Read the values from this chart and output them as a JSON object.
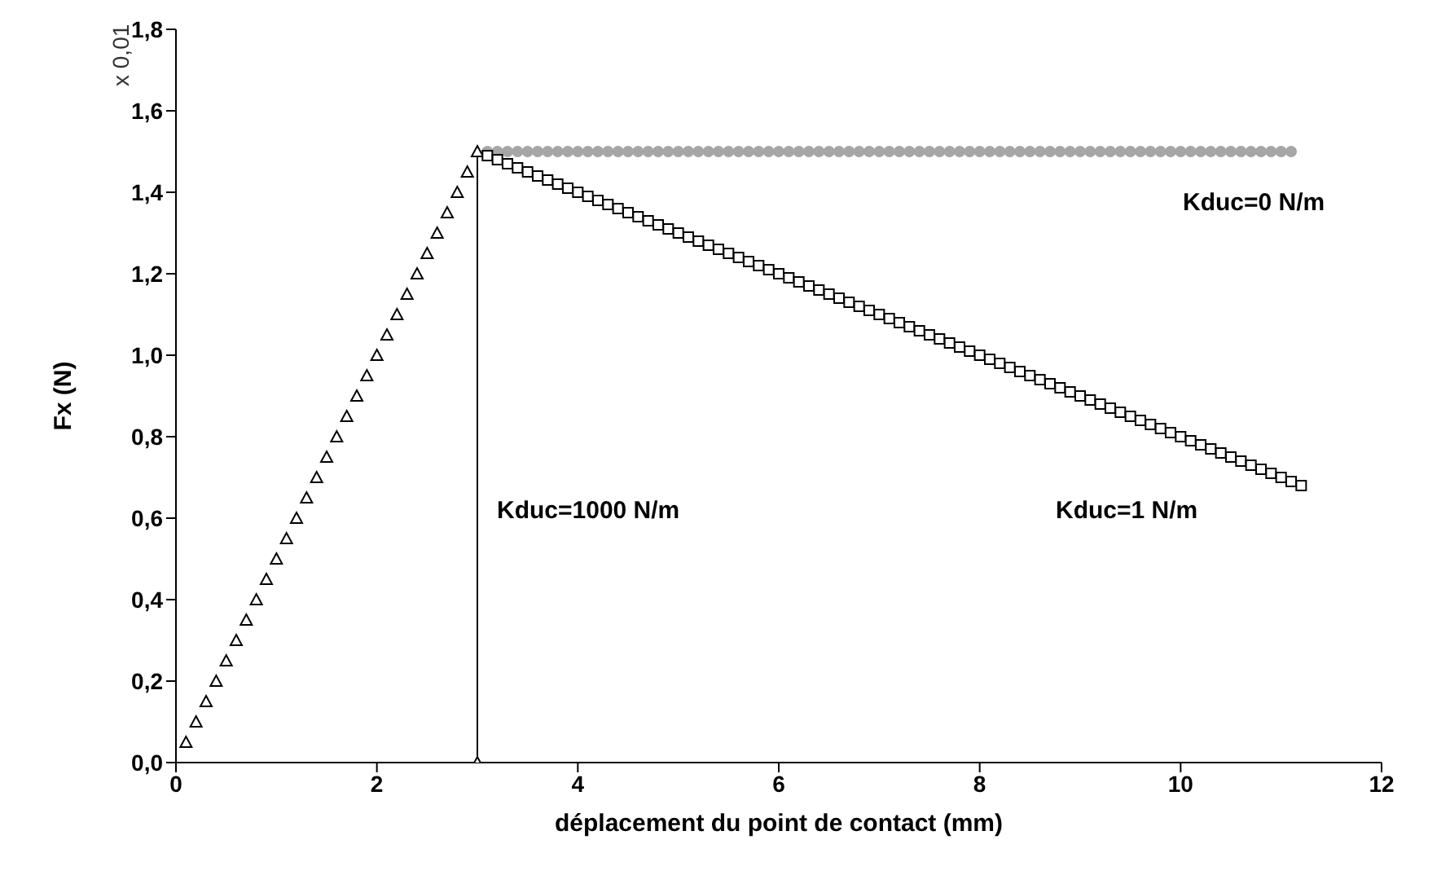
{
  "chart_data": {
    "type": "scatter",
    "xlabel": "déplacement du point de contact (mm)",
    "ylabel": "Fx (N)",
    "xlim": [
      0,
      12
    ],
    "xticks": [
      0,
      2,
      4,
      6,
      8,
      10,
      12
    ],
    "ylim": [
      0,
      1.8
    ],
    "yticks": [
      {
        "value": 0,
        "label": "0,0"
      },
      {
        "value": 0.2,
        "label": "0,2"
      },
      {
        "value": 0.4,
        "label": "0,4"
      },
      {
        "value": 0.6,
        "label": "0,6"
      },
      {
        "value": 0.8,
        "label": "0,8"
      },
      {
        "value": 1,
        "label": "1,0"
      },
      {
        "value": 1.2,
        "label": "1,2"
      },
      {
        "value": 1.4,
        "label": "1,4"
      },
      {
        "value": 1.6,
        "label": "1,6"
      },
      {
        "value": 1.8,
        "label": "1,8"
      }
    ],
    "grid": false,
    "legend": false,
    "annotations": [
      "x 0,01",
      "Kduc=0 N/m",
      "Kduc=1 N/m",
      "Kduc=1000 N/m"
    ],
    "series": [
      {
        "color": "#a6a6a6",
        "marker": "circle",
        "x": [
          3.1,
          3.2,
          3.3,
          3.4,
          3.5,
          3.6,
          3.7,
          3.8,
          3.9,
          4,
          4.1,
          4.2,
          4.3,
          4.4,
          4.5,
          4.6,
          4.7,
          4.8,
          4.9,
          5,
          5.1,
          5.2,
          5.3,
          5.4,
          5.5,
          5.6,
          5.7,
          5.8,
          5.9,
          6,
          6.1,
          6.2,
          6.3,
          6.4,
          6.5,
          6.6,
          6.7,
          6.8,
          6.9,
          7,
          7.1,
          7.2,
          7.3,
          7.4,
          7.5,
          7.6,
          7.7,
          7.8,
          7.9,
          8,
          8.1,
          8.2,
          8.3,
          8.4,
          8.5,
          8.6,
          8.7,
          8.8,
          8.9,
          9,
          9.1,
          9.2,
          9.3,
          9.4,
          9.5,
          9.6,
          9.7,
          9.8,
          9.9,
          10,
          10.1,
          10.2,
          10.3,
          10.4,
          10.5,
          10.6,
          10.7,
          10.8,
          10.9,
          11,
          11.1
        ],
        "values": [
          1.5,
          1.5,
          1.5,
          1.5,
          1.5,
          1.5,
          1.5,
          1.5,
          1.5,
          1.5,
          1.5,
          1.5,
          1.5,
          1.5,
          1.5,
          1.5,
          1.5,
          1.5,
          1.5,
          1.5,
          1.5,
          1.5,
          1.5,
          1.5,
          1.5,
          1.5,
          1.5,
          1.5,
          1.5,
          1.5,
          1.5,
          1.5,
          1.5,
          1.5,
          1.5,
          1.5,
          1.5,
          1.5,
          1.5,
          1.5,
          1.5,
          1.5,
          1.5,
          1.5,
          1.5,
          1.5,
          1.5,
          1.5,
          1.5,
          1.5,
          1.5,
          1.5,
          1.5,
          1.5,
          1.5,
          1.5,
          1.5,
          1.5,
          1.5,
          1.5,
          1.5,
          1.5,
          1.5,
          1.5,
          1.5,
          1.5,
          1.5,
          1.5,
          1.5,
          1.5,
          1.5,
          1.5,
          1.5,
          1.5,
          1.5,
          1.5,
          1.5,
          1.5,
          1.5,
          1.5,
          1.5
        ]
      },
      {
        "color": "#000000",
        "marker": "triangle",
        "x": [
          0.1,
          0.2,
          0.3,
          0.4,
          0.5,
          0.6,
          0.7,
          0.8,
          0.9,
          1,
          1.1,
          1.2,
          1.3,
          1.4,
          1.5,
          1.6,
          1.7,
          1.8,
          1.9,
          2,
          2.1,
          2.2,
          2.3,
          2.4,
          2.5,
          2.6,
          2.7,
          2.8,
          2.9
        ],
        "values": [
          0.05,
          0.1,
          0.15,
          0.2,
          0.25,
          0.3,
          0.35,
          0.4,
          0.45,
          0.5,
          0.55,
          0.6,
          0.65,
          0.7,
          0.75,
          0.8,
          0.85,
          0.9,
          0.95,
          1,
          1.05,
          1.1,
          1.15,
          1.2,
          1.25,
          1.3,
          1.35,
          1.4,
          1.45
        ]
      },
      {
        "type": "line",
        "color": "#000000",
        "marker": "triangle",
        "x": [
          3,
          3
        ],
        "values": [
          1.5,
          0
        ]
      },
      {
        "color": "#000000",
        "marker": "square",
        "x": [
          3.1,
          3.2,
          3.3,
          3.4,
          3.5,
          3.6,
          3.7,
          3.8,
          3.9,
          4,
          4.1,
          4.2,
          4.3,
          4.4,
          4.5,
          4.6,
          4.7,
          4.8,
          4.9,
          5,
          5.1,
          5.2,
          5.3,
          5.4,
          5.5,
          5.6,
          5.7,
          5.8,
          5.9,
          6,
          6.1,
          6.2,
          6.3,
          6.4,
          6.5,
          6.6,
          6.7,
          6.8,
          6.9,
          7,
          7.1,
          7.2,
          7.3,
          7.4,
          7.5,
          7.6,
          7.7,
          7.8,
          7.9,
          8,
          8.1,
          8.2,
          8.3,
          8.4,
          8.5,
          8.6,
          8.7,
          8.8,
          8.9,
          9,
          9.1,
          9.2,
          9.3,
          9.4,
          9.5,
          9.6,
          9.7,
          9.8,
          9.9,
          10,
          10.1,
          10.2,
          10.3,
          10.4,
          10.5,
          10.6,
          10.7,
          10.8,
          10.9,
          11,
          11.1,
          11.2
        ],
        "values": [
          1.49,
          1.48,
          1.47,
          1.46,
          1.45,
          1.44,
          1.43,
          1.42,
          1.41,
          1.4,
          1.39,
          1.38,
          1.37,
          1.36,
          1.35,
          1.34,
          1.33,
          1.32,
          1.31,
          1.3,
          1.29,
          1.28,
          1.27,
          1.26,
          1.25,
          1.24,
          1.23,
          1.22,
          1.21,
          1.2,
          1.19,
          1.18,
          1.17,
          1.16,
          1.15,
          1.14,
          1.13,
          1.12,
          1.11,
          1.1,
          1.09,
          1.08,
          1.07,
          1.06,
          1.05,
          1.04,
          1.03,
          1.02,
          1.01,
          1,
          0.99,
          0.98,
          0.97,
          0.96,
          0.95,
          0.94,
          0.93,
          0.92,
          0.91,
          0.9,
          0.89,
          0.88,
          0.87,
          0.86,
          0.85,
          0.84,
          0.83,
          0.82,
          0.81,
          0.8,
          0.79,
          0.78,
          0.77,
          0.76,
          0.75,
          0.74,
          0.73,
          0.72,
          0.71,
          0.7,
          0.69,
          0.68
        ]
      }
    ]
  }
}
